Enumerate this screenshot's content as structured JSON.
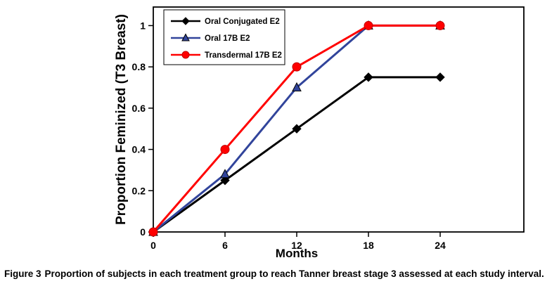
{
  "figure": {
    "caption_label": "Figure 3",
    "caption_text": "Proportion of subjects in each treatment group to reach Tanner breast stage 3 assessed at each study interval."
  },
  "chart_data": {
    "type": "line",
    "title": "",
    "xlabel": "Months",
    "ylabel": "Proportion Feminized (T3 Breast)",
    "x": [
      0,
      6,
      12,
      18,
      24
    ],
    "series": [
      {
        "name": "Oral Conjugated E2",
        "marker": "diamond",
        "color": "#000000",
        "values": [
          0,
          0.25,
          0.5,
          0.75,
          0.75
        ]
      },
      {
        "name": "Oral 17B E2",
        "marker": "triangle",
        "color": "#31449B",
        "values": [
          0,
          0.28,
          0.7,
          1,
          1
        ]
      },
      {
        "name": "Transdermal 17B E2",
        "marker": "circle",
        "color": "#FF0000",
        "values": [
          0,
          0.4,
          0.8,
          1,
          1
        ]
      }
    ],
    "xticks": [
      0,
      6,
      12,
      18,
      24
    ],
    "yticks": [
      0,
      0.2,
      0.4,
      0.6,
      0.8,
      1
    ],
    "xlim": [
      0,
      31
    ],
    "ylim": [
      0,
      1.09
    ],
    "grid": false,
    "legend_position": "top-left"
  }
}
